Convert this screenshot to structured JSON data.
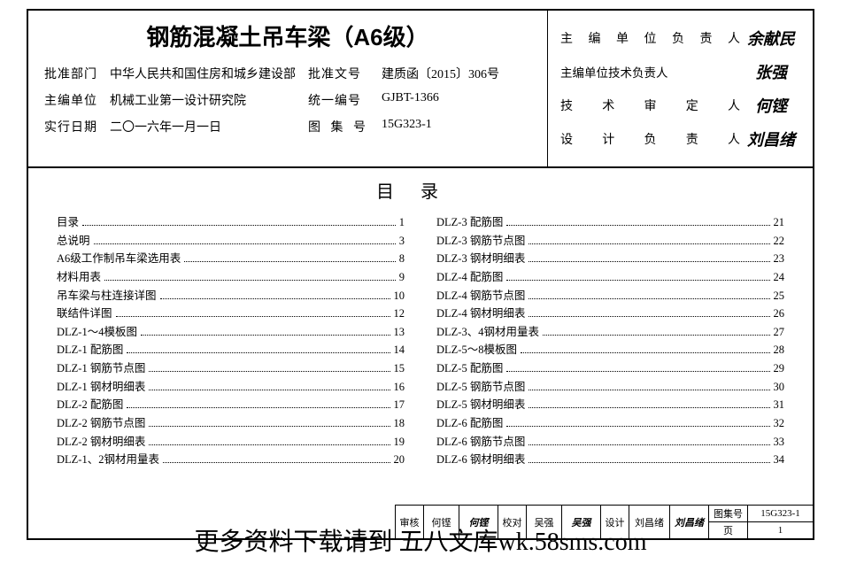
{
  "header": {
    "title": "钢筋混凝土吊车梁（A6级）",
    "rows": [
      {
        "l1": "批准部门",
        "v1": "中华人民共和国住房和城乡建设部",
        "l2": "批准文号",
        "v2": "建质函〔2015〕306号"
      },
      {
        "l1": "主编单位",
        "v1": "机械工业第一设计研究院",
        "l2": "统一编号",
        "v2": "GJBT-1366"
      },
      {
        "l1": "实行日期",
        "v1": "二〇一六年一月一日",
        "l2": "图 集 号",
        "v2": "15G323-1"
      }
    ],
    "signatures": [
      {
        "label": "主编单位负责人",
        "sign": "余献民"
      },
      {
        "label": "主编单位技术负责人",
        "sign": "张强"
      },
      {
        "label": "技术审定人",
        "sign": "何铿"
      },
      {
        "label": "设计负责人",
        "sign": "刘昌绪"
      }
    ]
  },
  "toc": {
    "title": "目录",
    "left": [
      {
        "t": "目录",
        "p": "1"
      },
      {
        "t": "总说明",
        "p": "3"
      },
      {
        "t": "A6级工作制吊车梁选用表",
        "p": "8"
      },
      {
        "t": "材料用表",
        "p": "9"
      },
      {
        "t": "吊车梁与柱连接详图",
        "p": "10"
      },
      {
        "t": "联结件详图",
        "p": "12"
      },
      {
        "t": "DLZ-1～4模板图",
        "p": "13"
      },
      {
        "t": "DLZ-1 配筋图",
        "p": "14"
      },
      {
        "t": "DLZ-1 钢筋节点图",
        "p": "15"
      },
      {
        "t": "DLZ-1 钢材明细表",
        "p": "16"
      },
      {
        "t": "DLZ-2 配筋图",
        "p": "17"
      },
      {
        "t": "DLZ-2 钢筋节点图",
        "p": "18"
      },
      {
        "t": "DLZ-2 钢材明细表",
        "p": "19"
      },
      {
        "t": "DLZ-1、2钢材用量表",
        "p": "20"
      }
    ],
    "right": [
      {
        "t": "DLZ-3 配筋图",
        "p": "21"
      },
      {
        "t": "DLZ-3 钢筋节点图",
        "p": "22"
      },
      {
        "t": "DLZ-3 钢材明细表",
        "p": "23"
      },
      {
        "t": "DLZ-4 配筋图",
        "p": "24"
      },
      {
        "t": "DLZ-4 钢筋节点图",
        "p": "25"
      },
      {
        "t": "DLZ-4 钢材明细表",
        "p": "26"
      },
      {
        "t": "DLZ-3、4钢材用量表",
        "p": "27"
      },
      {
        "t": "DLZ-5～8模板图",
        "p": "28"
      },
      {
        "t": "DLZ-5 配筋图",
        "p": "29"
      },
      {
        "t": "DLZ-5 钢筋节点图",
        "p": "30"
      },
      {
        "t": "DLZ-5 钢材明细表",
        "p": "31"
      },
      {
        "t": "DLZ-6 配筋图",
        "p": "32"
      },
      {
        "t": "DLZ-6 钢筋节点图",
        "p": "33"
      },
      {
        "t": "DLZ-6 钢材明细表",
        "p": "34"
      }
    ]
  },
  "footer": {
    "cells": [
      {
        "k": "审核",
        "v": "何铿",
        "s": "何铿"
      },
      {
        "k": "校对",
        "v": "吴强",
        "s": "吴强"
      },
      {
        "k": "设计",
        "v": "刘昌绪",
        "s": "刘昌绪"
      }
    ],
    "right": [
      {
        "k": "图集号",
        "v": "15G323-1"
      },
      {
        "k": "页",
        "v": "1"
      }
    ]
  },
  "watermark": "更多资料下载请到  五八文库wk.58sms.com"
}
